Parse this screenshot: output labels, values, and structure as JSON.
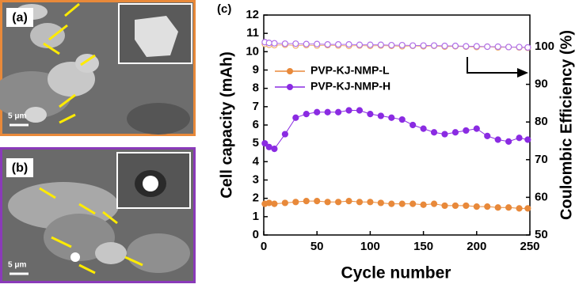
{
  "images": [
    {
      "label": "(a)",
      "scale_bar": "5 μm"
    },
    {
      "label": "(b)",
      "scale_bar": "5 μm"
    }
  ],
  "chart_data": {
    "type": "scatter",
    "panel_label": "(c)",
    "x_label": "Cycle number",
    "y_label": "Cell capacity (mAh)",
    "y2_label": "Coulombic Efficiency (%)",
    "xlim": [
      0,
      250
    ],
    "xticks": [
      0,
      50,
      100,
      150,
      200,
      250
    ],
    "ylim": [
      0,
      12
    ],
    "yticks": [
      0,
      1,
      2,
      3,
      4,
      5,
      6,
      7,
      8,
      9,
      10,
      11,
      12
    ],
    "y2lim": [
      50,
      108.4
    ],
    "y2ticks": [
      50,
      60,
      70,
      80,
      90,
      100
    ],
    "x": [
      1,
      5,
      10,
      20,
      30,
      40,
      50,
      60,
      70,
      80,
      90,
      100,
      110,
      120,
      130,
      140,
      150,
      160,
      170,
      180,
      190,
      200,
      210,
      220,
      230,
      240,
      248
    ],
    "series": [
      {
        "name": "PVP-KJ-NMP-L",
        "color": "#e8893a",
        "filled": true,
        "values": [
          1.7,
          1.75,
          1.7,
          1.75,
          1.8,
          1.85,
          1.85,
          1.8,
          1.8,
          1.85,
          1.8,
          1.8,
          1.75,
          1.7,
          1.7,
          1.7,
          1.65,
          1.7,
          1.6,
          1.6,
          1.6,
          1.55,
          1.55,
          1.5,
          1.5,
          1.45,
          1.45
        ]
      },
      {
        "name": "PVP-KJ-NMP-H",
        "color": "#8a2be2",
        "filled": true,
        "values": [
          5.0,
          4.8,
          4.7,
          5.5,
          6.4,
          6.6,
          6.7,
          6.7,
          6.7,
          6.8,
          6.8,
          6.6,
          6.5,
          6.4,
          6.3,
          6.0,
          5.8,
          5.6,
          5.5,
          5.6,
          5.7,
          5.8,
          5.4,
          5.2,
          5.1,
          5.3,
          5.2
        ]
      },
      {
        "color": "#f0b070",
        "filled": false,
        "axis": "y2",
        "values": [
          100.7,
          100.5,
          100.4,
          100.5,
          100.3,
          100.4,
          100.3,
          100.4,
          100.3,
          100.2,
          100.3,
          100.2,
          100.3,
          100.2,
          100.1,
          100.2,
          100.1,
          100.2,
          100.0,
          100.1,
          100.0,
          99.9,
          100.0,
          99.8,
          99.9,
          99.8,
          99.7
        ]
      },
      {
        "color": "#b070e8",
        "filled": false,
        "axis": "y2",
        "values": [
          101.2,
          101.0,
          100.9,
          100.8,
          100.8,
          100.7,
          100.7,
          100.6,
          100.6,
          100.6,
          100.5,
          100.5,
          100.5,
          100.4,
          100.4,
          100.3,
          100.3,
          100.3,
          100.2,
          100.2,
          100.1,
          100.1,
          100.0,
          100.0,
          99.9,
          99.9,
          99.8
        ]
      }
    ],
    "legend": "upper-left"
  }
}
